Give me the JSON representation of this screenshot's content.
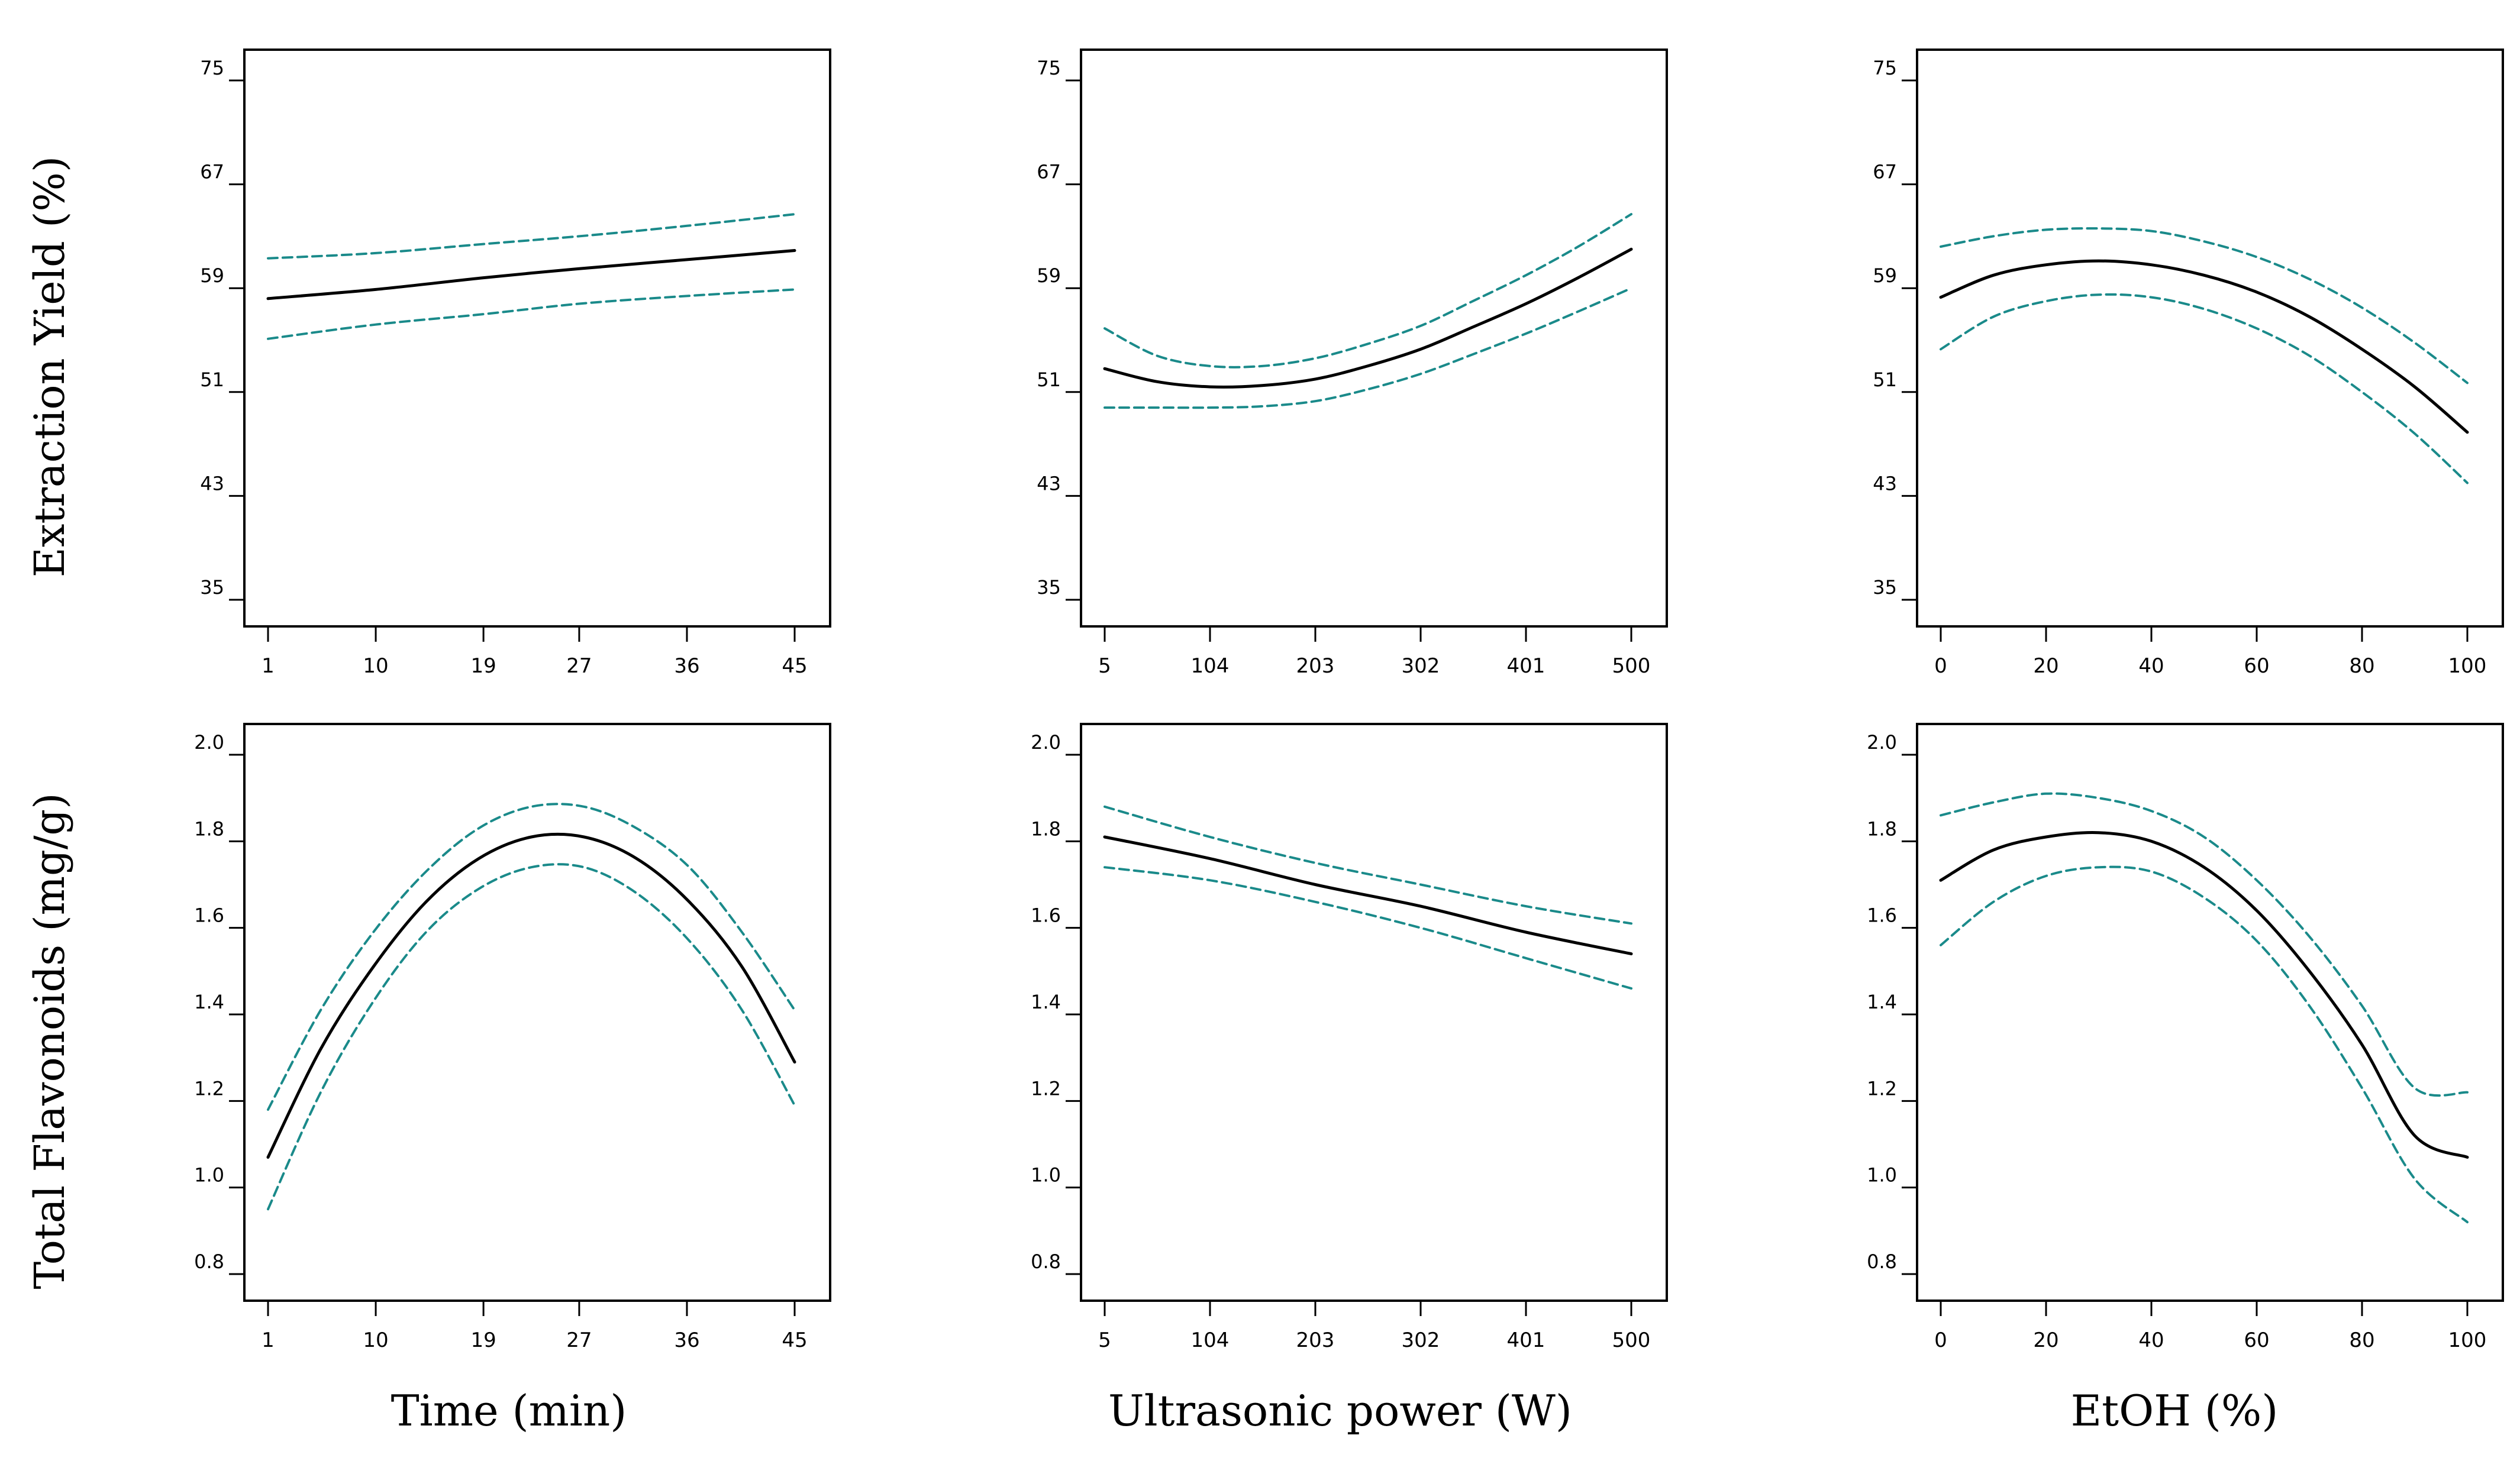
{
  "colors": {
    "fit": "#000000",
    "ci": "#1a8a8a",
    "frame": "#000000"
  },
  "labels": {
    "row_labels": [
      "Extraction Yield (%)",
      "Total Flavonoids (mg/g)"
    ],
    "col_labels": [
      "Time (min)",
      "Ultrasonic power (W)",
      "EtOH (%)"
    ]
  },
  "chart_data": [
    {
      "type": "line",
      "row": 0,
      "col": 0,
      "xlabel": "Time (min)",
      "ylabel": "Extraction Yield (%)",
      "xlim": [
        1,
        45
      ],
      "ylim": [
        35,
        75
      ],
      "xticks": [
        1,
        10,
        19,
        27,
        36,
        45
      ],
      "xtick_labels": [
        "1",
        "10",
        "19",
        "27",
        "36",
        "45"
      ],
      "yticks": [
        35,
        43,
        51,
        59,
        67,
        75
      ],
      "ytick_labels": [
        "35",
        "43",
        "51",
        "59",
        "67",
        "75"
      ],
      "x": [
        1,
        10,
        19,
        27,
        36,
        45
      ],
      "series": [
        {
          "name": "fit",
          "values": [
            58.2,
            58.9,
            59.8,
            60.5,
            61.2,
            61.9
          ]
        },
        {
          "name": "upper",
          "values": [
            61.3,
            61.7,
            62.4,
            63.0,
            63.8,
            64.7
          ]
        },
        {
          "name": "lower",
          "values": [
            55.1,
            56.2,
            57.0,
            57.8,
            58.4,
            58.9
          ]
        }
      ]
    },
    {
      "type": "line",
      "row": 0,
      "col": 1,
      "xlabel": "Ultrasonic power (W)",
      "ylabel": "Extraction Yield (%)",
      "xlim": [
        5,
        500
      ],
      "ylim": [
        35,
        75
      ],
      "xticks": [
        5,
        104,
        203,
        302,
        401,
        500
      ],
      "xtick_labels": [
        "5",
        "104",
        "203",
        "302",
        "401",
        "500"
      ],
      "yticks": [
        35,
        43,
        51,
        59,
        67,
        75
      ],
      "ytick_labels": [
        "35",
        "43",
        "51",
        "59",
        "67",
        "75"
      ],
      "x": [
        5,
        54,
        104,
        153,
        203,
        252,
        302,
        351,
        401,
        450,
        500
      ],
      "series": [
        {
          "name": "fit",
          "values": [
            52.8,
            51.8,
            51.4,
            51.5,
            52.0,
            53.0,
            54.3,
            56.0,
            57.8,
            59.8,
            62.0
          ]
        },
        {
          "name": "upper",
          "values": [
            55.9,
            53.8,
            53.0,
            53.0,
            53.6,
            54.7,
            56.1,
            58.0,
            60.0,
            62.2,
            64.7
          ]
        },
        {
          "name": "lower",
          "values": [
            49.8,
            49.8,
            49.8,
            49.9,
            50.3,
            51.2,
            52.4,
            53.9,
            55.5,
            57.2,
            59.0
          ]
        }
      ]
    },
    {
      "type": "line",
      "row": 0,
      "col": 2,
      "xlabel": "EtOH (%)",
      "ylabel": "Extraction Yield (%)",
      "xlim": [
        0,
        100
      ],
      "ylim": [
        35,
        75
      ],
      "xticks": [
        0,
        20,
        40,
        60,
        80,
        100
      ],
      "xtick_labels": [
        "0",
        "20",
        "40",
        "60",
        "80",
        "100"
      ],
      "yticks": [
        35,
        43,
        51,
        59,
        67,
        75
      ],
      "ytick_labels": [
        "35",
        "43",
        "51",
        "59",
        "67",
        "75"
      ],
      "x": [
        0,
        10,
        20,
        30,
        40,
        50,
        60,
        70,
        80,
        90,
        100
      ],
      "series": [
        {
          "name": "fit",
          "values": [
            58.3,
            60.0,
            60.8,
            61.1,
            60.8,
            60.0,
            58.7,
            56.8,
            54.3,
            51.4,
            47.9
          ]
        },
        {
          "name": "upper",
          "values": [
            62.2,
            63.0,
            63.5,
            63.6,
            63.4,
            62.6,
            61.4,
            59.7,
            57.5,
            54.8,
            51.7
          ]
        },
        {
          "name": "lower",
          "values": [
            54.3,
            56.8,
            58.0,
            58.5,
            58.3,
            57.4,
            55.9,
            53.8,
            51.0,
            47.8,
            44.0
          ]
        }
      ]
    },
    {
      "type": "line",
      "row": 1,
      "col": 0,
      "xlabel": "Time (min)",
      "ylabel": "Total Flavonoids (mg/g)",
      "xlim": [
        1,
        45
      ],
      "ylim": [
        0.8,
        2.0
      ],
      "xticks": [
        1,
        10,
        19,
        27,
        36,
        45
      ],
      "xtick_labels": [
        "1",
        "10",
        "19",
        "27",
        "36",
        "45"
      ],
      "yticks": [
        0.8,
        1.0,
        1.2,
        1.4,
        1.6,
        1.8,
        2.0
      ],
      "ytick_labels": [
        "0.8",
        "1.0",
        "1.2",
        "1.4",
        "1.6",
        "1.8",
        "2.0"
      ],
      "x": [
        1,
        5.4,
        9.8,
        14.2,
        18.6,
        23,
        27.4,
        31.8,
        36.2,
        40.6,
        45
      ],
      "series": [
        {
          "name": "fit",
          "values": [
            1.07,
            1.32,
            1.51,
            1.66,
            1.76,
            1.81,
            1.81,
            1.76,
            1.66,
            1.51,
            1.29
          ]
        },
        {
          "name": "upper",
          "values": [
            1.18,
            1.41,
            1.59,
            1.73,
            1.83,
            1.88,
            1.88,
            1.83,
            1.74,
            1.59,
            1.41
          ]
        },
        {
          "name": "lower",
          "values": [
            0.95,
            1.22,
            1.43,
            1.59,
            1.69,
            1.74,
            1.74,
            1.68,
            1.57,
            1.41,
            1.19
          ]
        }
      ]
    },
    {
      "type": "line",
      "row": 1,
      "col": 1,
      "xlabel": "Ultrasonic power (W)",
      "ylabel": "Total Flavonoids (mg/g)",
      "xlim": [
        5,
        500
      ],
      "ylim": [
        0.8,
        2.0
      ],
      "xticks": [
        5,
        104,
        203,
        302,
        401,
        500
      ],
      "xtick_labels": [
        "5",
        "104",
        "203",
        "302",
        "401",
        "500"
      ],
      "yticks": [
        0.8,
        1.0,
        1.2,
        1.4,
        1.6,
        1.8,
        2.0
      ],
      "ytick_labels": [
        "0.8",
        "1.0",
        "1.2",
        "1.4",
        "1.6",
        "1.8",
        "2.0"
      ],
      "x": [
        5,
        104,
        203,
        302,
        401,
        500
      ],
      "series": [
        {
          "name": "fit",
          "values": [
            1.81,
            1.76,
            1.7,
            1.65,
            1.59,
            1.54
          ]
        },
        {
          "name": "upper",
          "values": [
            1.88,
            1.81,
            1.75,
            1.7,
            1.65,
            1.61
          ]
        },
        {
          "name": "lower",
          "values": [
            1.74,
            1.71,
            1.66,
            1.6,
            1.53,
            1.46
          ]
        }
      ]
    },
    {
      "type": "line",
      "row": 1,
      "col": 2,
      "xlabel": "EtOH (%)",
      "ylabel": "Total Flavonoids (mg/g)",
      "xlim": [
        0,
        100
      ],
      "ylim": [
        0.8,
        2.0
      ],
      "xticks": [
        0,
        20,
        40,
        60,
        80,
        100
      ],
      "xtick_labels": [
        "0",
        "20",
        "40",
        "60",
        "80",
        "100"
      ],
      "yticks": [
        0.8,
        1.0,
        1.2,
        1.4,
        1.6,
        1.8,
        2.0
      ],
      "ytick_labels": [
        "0.8",
        "1.0",
        "1.2",
        "1.4",
        "1.6",
        "1.8",
        "2.0"
      ],
      "x": [
        0,
        10,
        20,
        30,
        40,
        50,
        60,
        70,
        80,
        90,
        100
      ],
      "series": [
        {
          "name": "fit",
          "values": [
            1.71,
            1.78,
            1.81,
            1.82,
            1.8,
            1.74,
            1.64,
            1.5,
            1.33,
            1.12,
            1.07
          ]
        },
        {
          "name": "upper",
          "values": [
            1.86,
            1.89,
            1.91,
            1.9,
            1.87,
            1.81,
            1.71,
            1.58,
            1.42,
            1.23,
            1.22
          ]
        },
        {
          "name": "lower",
          "values": [
            1.56,
            1.66,
            1.72,
            1.74,
            1.73,
            1.67,
            1.57,
            1.42,
            1.23,
            1.02,
            0.92
          ]
        }
      ]
    }
  ]
}
